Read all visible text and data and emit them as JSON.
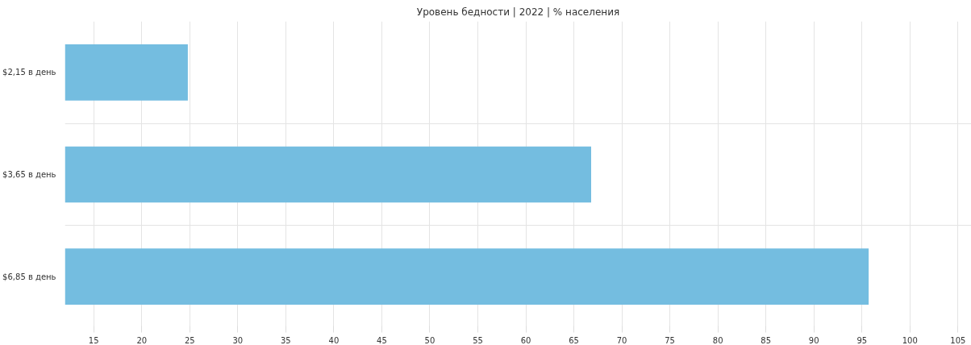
{
  "chart_data": {
    "type": "bar",
    "orientation": "horizontal",
    "title": "Уровень бедности | 2022 | % населения",
    "categories": [
      "$2,15 в день",
      "$3,65 в день",
      "$6,85 в день"
    ],
    "values": [
      24.8,
      66.8,
      95.7
    ],
    "color": "#74bde0",
    "xlim": [
      12,
      106.4
    ],
    "xticks": [
      15,
      20,
      25,
      30,
      35,
      40,
      45,
      50,
      55,
      60,
      65,
      70,
      75,
      80,
      85,
      90,
      95,
      100,
      105
    ],
    "grid": true
  }
}
